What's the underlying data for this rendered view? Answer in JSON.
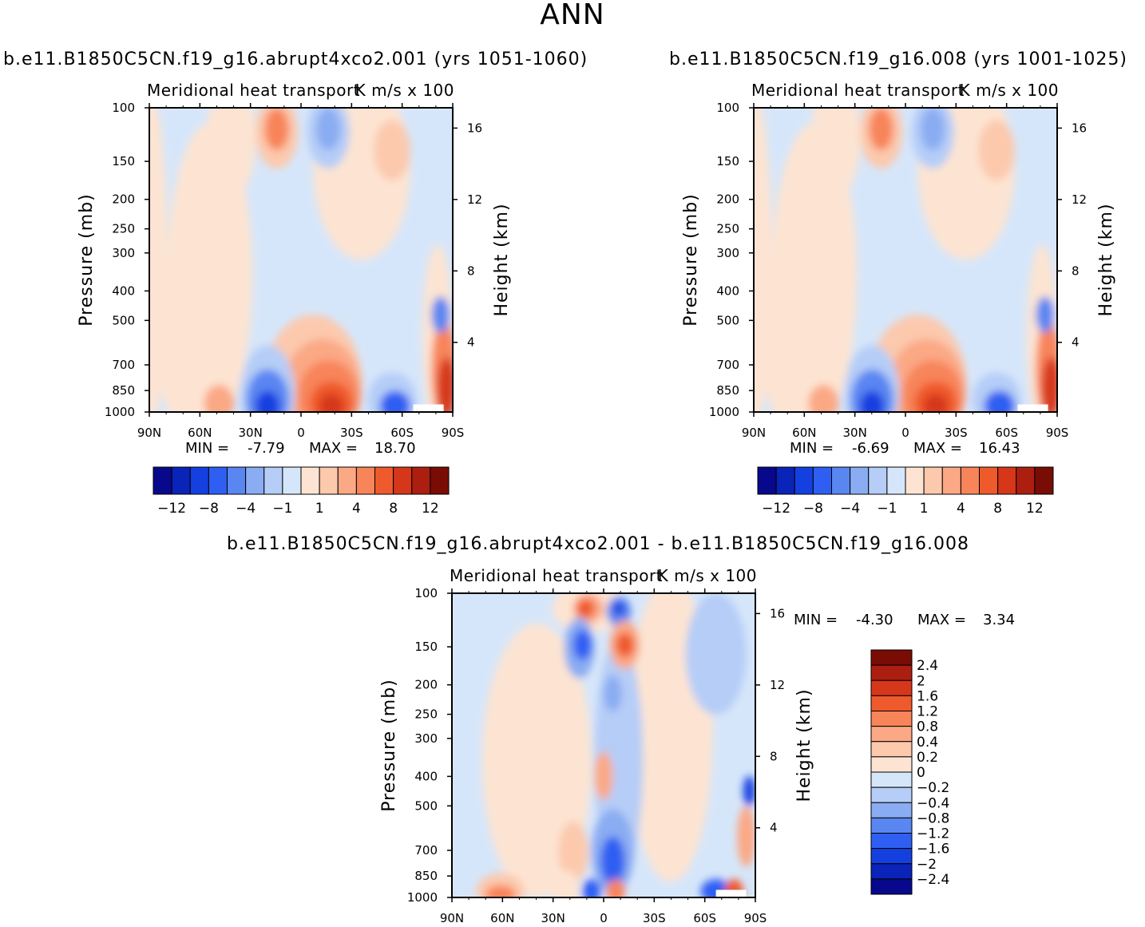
{
  "figure": {
    "title": "ANN",
    "panels": [
      {
        "case_title": "b.e11.B1850C5CN.f19_g16.abrupt4xco2.001 (yrs 1051-1060)",
        "plot_title": "Meridional heat transport",
        "units": "K m/s x 100",
        "ylabel_left": "Pressure (mb)",
        "ylabel_right": "Height (km)",
        "min_label": "MIN =",
        "min_value": "-7.79",
        "max_label": "MAX =",
        "max_value": "18.70"
      },
      {
        "case_title": "b.e11.B1850C5CN.f19_g16.008 (yrs 1001-1025)",
        "plot_title": "Meridional heat transport",
        "units": "K m/s x 100",
        "ylabel_left": "Pressure (mb)",
        "ylabel_right": "Height (km)",
        "min_label": "MIN =",
        "min_value": "-6.69",
        "max_label": "MAX =",
        "max_value": "16.43"
      },
      {
        "case_title": "b.e11.B1850C5CN.f19_g16.abrupt4xco2.001 - b.e11.B1850C5CN.f19_g16.008",
        "plot_title": "Meridional heat transport",
        "units": "K m/s x 100",
        "ylabel_left": "Pressure (mb)",
        "ylabel_right": "Height (km)",
        "min_label": "MIN =",
        "min_value": "-4.30",
        "max_label": "MAX =",
        "max_value": "3.34"
      }
    ]
  },
  "chart_data": [
    {
      "type": "heatmap",
      "title": "Meridional heat transport",
      "units": "K m/s x 100",
      "xlabel": "",
      "ylabel": "Pressure (mb)",
      "ylabel_right": "Height (km)",
      "x_ticks": [
        "90N",
        "60N",
        "30N",
        "0",
        "30S",
        "60S",
        "90S"
      ],
      "y_ticks": [
        100,
        150,
        200,
        250,
        300,
        400,
        500,
        700,
        850,
        1000
      ],
      "height_ticks_km": [
        16,
        12,
        8,
        4
      ],
      "min": -7.79,
      "max": 18.7,
      "colorbar_levels": [
        -12,
        -10,
        -8,
        -6,
        -4,
        -2,
        -1,
        0,
        1,
        2,
        4,
        6,
        8,
        10,
        12
      ],
      "colorbar_labels": [
        "-12",
        "-8",
        "-4",
        "-1",
        "1",
        "4",
        "8",
        "12"
      ]
    },
    {
      "type": "heatmap",
      "title": "Meridional heat transport",
      "units": "K m/s x 100",
      "xlabel": "",
      "ylabel": "Pressure (mb)",
      "ylabel_right": "Height (km)",
      "x_ticks": [
        "90N",
        "60N",
        "30N",
        "0",
        "30S",
        "60S",
        "90S"
      ],
      "y_ticks": [
        100,
        150,
        200,
        250,
        300,
        400,
        500,
        700,
        850,
        1000
      ],
      "height_ticks_km": [
        16,
        12,
        8,
        4
      ],
      "min": -6.69,
      "max": 16.43,
      "colorbar_levels": [
        -12,
        -10,
        -8,
        -6,
        -4,
        -2,
        -1,
        0,
        1,
        2,
        4,
        6,
        8,
        10,
        12
      ],
      "colorbar_labels": [
        "-12",
        "-8",
        "-4",
        "-1",
        "1",
        "4",
        "8",
        "12"
      ]
    },
    {
      "type": "heatmap",
      "title": "Meridional heat transport",
      "units": "K m/s x 100",
      "xlabel": "",
      "ylabel": "Pressure (mb)",
      "ylabel_right": "Height (km)",
      "x_ticks": [
        "90N",
        "60N",
        "30N",
        "0",
        "30S",
        "60S",
        "90S"
      ],
      "y_ticks": [
        100,
        150,
        200,
        250,
        300,
        400,
        500,
        700,
        850,
        1000
      ],
      "height_ticks_km": [
        16,
        12,
        8,
        4
      ],
      "min": -4.3,
      "max": 3.34,
      "colorbar_levels": [
        -2.4,
        -2,
        -1.6,
        -1.2,
        -0.8,
        -0.4,
        -0.2,
        0,
        0.2,
        0.4,
        0.8,
        1.2,
        1.6,
        2,
        2.4
      ],
      "colorbar_labels": [
        "2.4",
        "2",
        "1.6",
        "1.2",
        "0.8",
        "0.4",
        "0.2",
        "0",
        "-0.2",
        "-0.4",
        "-0.8",
        "-1.2",
        "-1.6",
        "-2",
        "-2.4"
      ]
    }
  ],
  "colors": {
    "palette": [
      "#08088c",
      "#0a23b8",
      "#1440e0",
      "#2e5ff2",
      "#5a86f2",
      "#8aacf2",
      "#b5cdf7",
      "#d6e6fa",
      "#fde4d2",
      "#fcc9ad",
      "#fba885",
      "#f8845a",
      "#ef5a2c",
      "#d6371a",
      "#ac1f10",
      "#7a0c06"
    ],
    "zero_neg": "#d6e6fa",
    "zero_pos": "#fde4d2"
  }
}
